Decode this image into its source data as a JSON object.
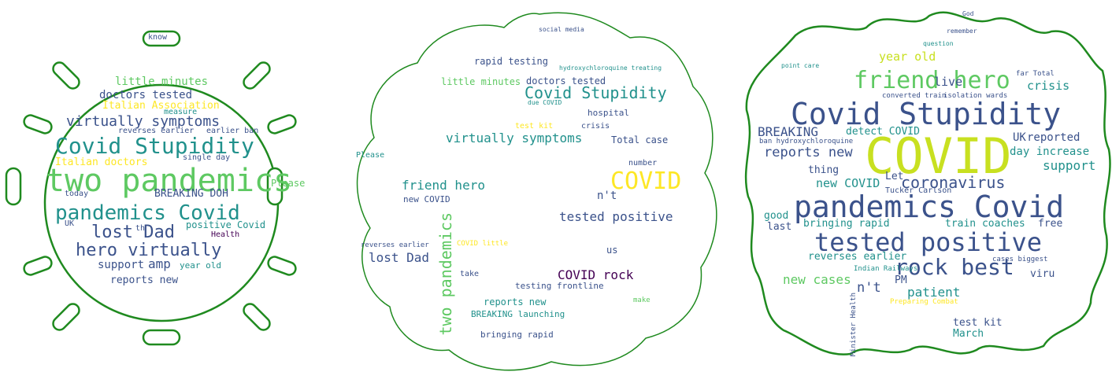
{
  "colors": {
    "outline": "#1f8a1f",
    "palette": [
      "#440154",
      "#3b528b",
      "#21918c",
      "#5ec962",
      "#fde725"
    ]
  },
  "clouds": [
    {
      "shape": "virus",
      "words": [
        {
          "t": "two pandemics",
          "c": "#5ec962"
        },
        {
          "t": "Covid Stupidity",
          "c": "#21918c"
        },
        {
          "t": "pandemics Covid",
          "c": "#21918c"
        },
        {
          "t": "hero virtually",
          "c": "#3b528b"
        },
        {
          "t": "lost Dad",
          "c": "#3b528b"
        },
        {
          "t": "virtually symptoms",
          "c": "#3b528b"
        },
        {
          "t": "doctors tested",
          "c": "#3b528b"
        },
        {
          "t": "Italian Association",
          "c": "#fde725"
        },
        {
          "t": "little minutes",
          "c": "#5ec962"
        },
        {
          "t": "Italian doctors",
          "c": "#fde725"
        },
        {
          "t": "BREAKING DOH",
          "c": "#3b528b"
        },
        {
          "t": "positive Covid",
          "c": "#21918c"
        },
        {
          "t": "amp",
          "c": "#3b528b"
        },
        {
          "t": "support",
          "c": "#3b528b"
        },
        {
          "t": "reports new",
          "c": "#3b528b"
        },
        {
          "t": "Please",
          "c": "#5ec962"
        },
        {
          "t": "year old",
          "c": "#21918c"
        },
        {
          "t": "today",
          "c": "#3b528b"
        },
        {
          "t": "know",
          "c": "#3b528b"
        },
        {
          "t": "Health",
          "c": "#440154"
        },
        {
          "t": "measure",
          "c": "#21918c"
        },
        {
          "t": "reverses earlier",
          "c": "#3b528b"
        },
        {
          "t": "single day",
          "c": "#3b528b"
        },
        {
          "t": "earlier ban",
          "c": "#3b528b"
        },
        {
          "t": "UK",
          "c": "#3b528b"
        },
        {
          "t": "th",
          "c": "#3b528b"
        }
      ]
    },
    {
      "shape": "blob",
      "words": [
        {
          "t": "COVID",
          "c": "#fde725"
        },
        {
          "t": "two pandemics",
          "c": "#5ec962"
        },
        {
          "t": "Covid Stupidity",
          "c": "#21918c"
        },
        {
          "t": "virtually symptoms",
          "c": "#21918c"
        },
        {
          "t": "friend hero",
          "c": "#21918c"
        },
        {
          "t": "tested positive",
          "c": "#3b528b"
        },
        {
          "t": "lost Dad",
          "c": "#3b528b"
        },
        {
          "t": "COVID rock",
          "c": "#440154"
        },
        {
          "t": "rapid testing",
          "c": "#3b528b"
        },
        {
          "t": "little minutes",
          "c": "#5ec962"
        },
        {
          "t": "doctors tested",
          "c": "#3b528b"
        },
        {
          "t": "Total case",
          "c": "#3b528b"
        },
        {
          "t": "n't",
          "c": "#3b528b"
        },
        {
          "t": "reports new",
          "c": "#21918c"
        },
        {
          "t": "BREAKING launching",
          "c": "#21918c"
        },
        {
          "t": "bringing rapid",
          "c": "#3b528b"
        },
        {
          "t": "testing frontline",
          "c": "#3b528b"
        },
        {
          "t": "new COVID",
          "c": "#3b528b"
        },
        {
          "t": "hospital",
          "c": "#3b528b"
        },
        {
          "t": "number",
          "c": "#3b528b"
        },
        {
          "t": "us",
          "c": "#3b528b"
        },
        {
          "t": "take",
          "c": "#3b528b"
        },
        {
          "t": "Please",
          "c": "#21918c"
        },
        {
          "t": "reverses earlier",
          "c": "#3b528b"
        },
        {
          "t": "test kit",
          "c": "#fde725"
        },
        {
          "t": "crisis",
          "c": "#3b528b"
        },
        {
          "t": "COVID little",
          "c": "#fde725"
        },
        {
          "t": "make",
          "c": "#5ec962"
        },
        {
          "t": "social media",
          "c": "#3b528b"
        },
        {
          "t": "hydroxychloroquine treating",
          "c": "#21918c"
        },
        {
          "t": "due COVID",
          "c": "#21918c"
        }
      ]
    },
    {
      "shape": "splat",
      "words": [
        {
          "t": "COVID",
          "c": "#c8e020"
        },
        {
          "t": "Covid Stupidity",
          "c": "#3b528b"
        },
        {
          "t": "pandemics Covid",
          "c": "#3b528b"
        },
        {
          "t": "tested positive",
          "c": "#3b528b"
        },
        {
          "t": "friend hero",
          "c": "#5ec962"
        },
        {
          "t": "rock best",
          "c": "#3b528b"
        },
        {
          "t": "coronavirus",
          "c": "#3b528b"
        },
        {
          "t": "reports new",
          "c": "#3b528b"
        },
        {
          "t": "BREAKING",
          "c": "#3b528b"
        },
        {
          "t": "support",
          "c": "#21918c"
        },
        {
          "t": "new COVID",
          "c": "#21918c"
        },
        {
          "t": "n't",
          "c": "#3b528b"
        },
        {
          "t": "patient",
          "c": "#21918c"
        },
        {
          "t": "new cases",
          "c": "#5ec962"
        },
        {
          "t": "crisis",
          "c": "#21918c"
        },
        {
          "t": "live",
          "c": "#3b528b"
        },
        {
          "t": "year old",
          "c": "#c8e020"
        },
        {
          "t": "day increase",
          "c": "#21918c"
        },
        {
          "t": "UK",
          "c": "#3b528b"
        },
        {
          "t": "reported",
          "c": "#3b528b"
        },
        {
          "t": "detect COVID",
          "c": "#21918c"
        },
        {
          "t": "thing",
          "c": "#3b528b"
        },
        {
          "t": "Let",
          "c": "#3b528b"
        },
        {
          "t": "free",
          "c": "#3b528b"
        },
        {
          "t": "train coaches",
          "c": "#21918c"
        },
        {
          "t": "bringing rapid",
          "c": "#21918c"
        },
        {
          "t": "reverses earlier",
          "c": "#21918c"
        },
        {
          "t": "good",
          "c": "#21918c"
        },
        {
          "t": "last",
          "c": "#3b528b"
        },
        {
          "t": "PM",
          "c": "#3b528b"
        },
        {
          "t": "viru",
          "c": "#3b528b"
        },
        {
          "t": "test kit",
          "c": "#3b528b"
        },
        {
          "t": "March",
          "c": "#21918c"
        },
        {
          "t": "Tucker Carlson",
          "c": "#3b528b"
        },
        {
          "t": "remember",
          "c": "#3b528b"
        },
        {
          "t": "cases biggest",
          "c": "#3b528b"
        },
        {
          "t": "point care",
          "c": "#21918c"
        },
        {
          "t": "isolation wards",
          "c": "#3b528b"
        },
        {
          "t": "converted train",
          "c": "#3b528b"
        },
        {
          "t": "Indian Railways",
          "c": "#21918c"
        },
        {
          "t": "Preparing Combat",
          "c": "#fde725"
        },
        {
          "t": "ban hydroxychloroquine",
          "c": "#3b528b"
        },
        {
          "t": "far Total",
          "c": "#3b528b"
        },
        {
          "t": "God",
          "c": "#3b528b"
        },
        {
          "t": "question",
          "c": "#21918c"
        },
        {
          "t": "Minister Health",
          "c": "#3b528b"
        }
      ]
    }
  ]
}
